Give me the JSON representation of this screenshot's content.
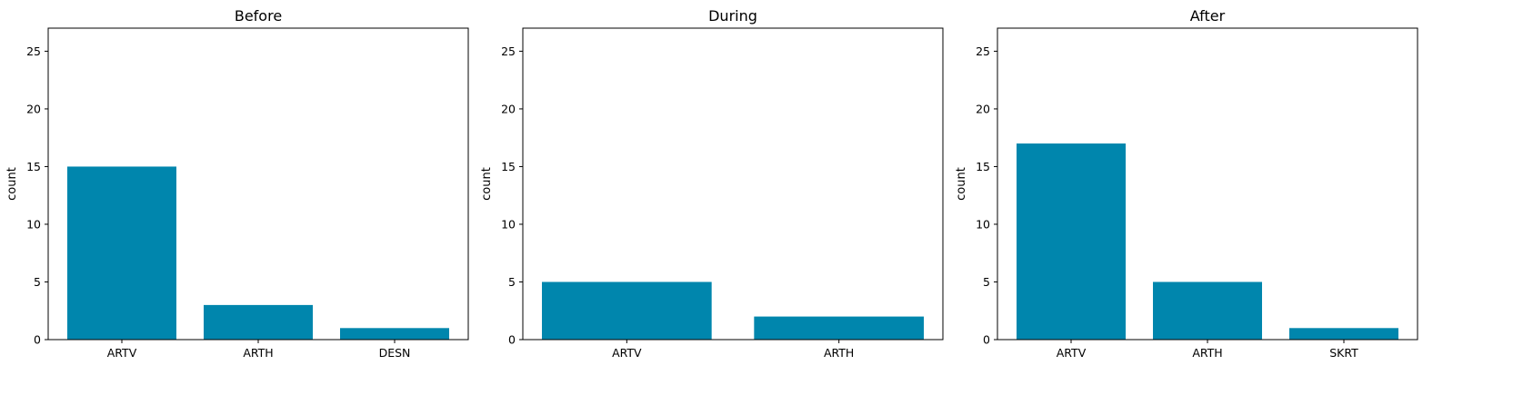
{
  "chart_data": [
    {
      "type": "bar",
      "title": "Before",
      "xlabel": "",
      "ylabel": "count",
      "categories": [
        "ARTV",
        "ARTH",
        "DESN"
      ],
      "values": [
        15,
        3,
        1
      ],
      "ylim": [
        0,
        27
      ],
      "yticks": [
        0,
        5,
        10,
        15,
        20,
        25
      ],
      "color": "#0086ad",
      "grid": false
    },
    {
      "type": "bar",
      "title": "During",
      "xlabel": "",
      "ylabel": "count",
      "categories": [
        "ARTV",
        "ARTH"
      ],
      "values": [
        5,
        2
      ],
      "ylim": [
        0,
        27
      ],
      "yticks": [
        0,
        5,
        10,
        15,
        20,
        25
      ],
      "color": "#0086ad",
      "grid": false
    },
    {
      "type": "bar",
      "title": "After",
      "xlabel": "",
      "ylabel": "count",
      "categories": [
        "ARTV",
        "ARTH",
        "SKRT"
      ],
      "values": [
        17,
        5,
        1
      ],
      "ylim": [
        0,
        27
      ],
      "yticks": [
        0,
        5,
        10,
        15,
        20,
        25
      ],
      "color": "#0086ad",
      "grid": false
    }
  ]
}
